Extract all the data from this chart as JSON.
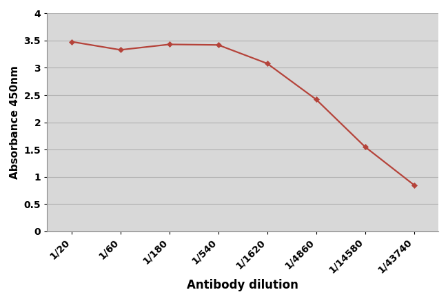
{
  "x_labels": [
    "1/20",
    "1/60",
    "1/180",
    "1/540",
    "1/1620",
    "1/4860",
    "1/14580",
    "1/43740"
  ],
  "y_values": [
    3.48,
    3.33,
    3.43,
    3.42,
    3.08,
    2.42,
    1.55,
    0.85
  ],
  "line_color": "#b5433a",
  "marker_color": "#b5433a",
  "marker_style": "D",
  "marker_size": 4,
  "line_width": 1.6,
  "xlabel": "Antibody dilution",
  "ylabel": "Absorbance 450nm",
  "xlabel_fontsize": 12,
  "ylabel_fontsize": 11,
  "xlabel_fontweight": "bold",
  "ylabel_fontweight": "bold",
  "ylim": [
    0,
    4.0
  ],
  "yticks": [
    0,
    0.5,
    1.0,
    1.5,
    2.0,
    2.5,
    3.0,
    3.5,
    4.0
  ],
  "ytick_labels": [
    "0",
    "0.5",
    "1",
    "1.5",
    "2",
    "2.5",
    "3",
    "3.5",
    "4"
  ],
  "plot_bg_color": "#d8d8d8",
  "outer_bg_color": "#ffffff",
  "grid_color": "#b0b0b0",
  "tick_fontsize": 10,
  "tick_fontweight": "bold",
  "xtick_rotation": 45
}
